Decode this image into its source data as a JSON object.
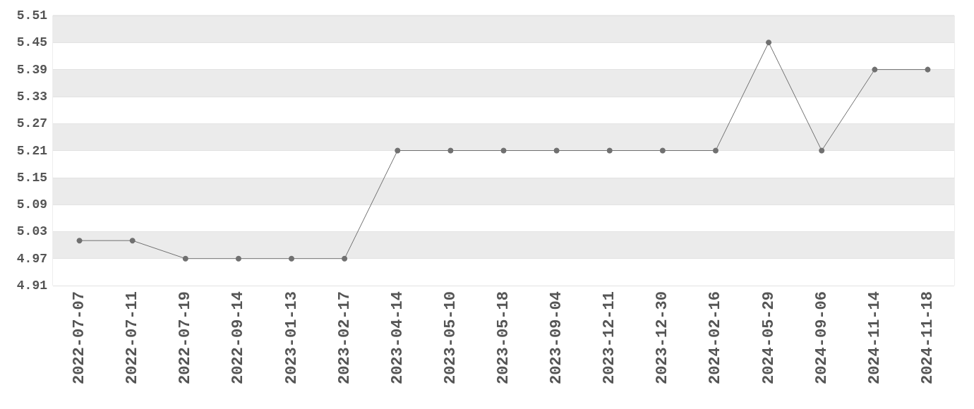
{
  "chart_data": {
    "type": "line",
    "categories": [
      "2022-07-07",
      "2022-07-11",
      "2022-07-19",
      "2022-09-14",
      "2023-01-13",
      "2023-02-17",
      "2023-04-14",
      "2023-05-10",
      "2023-05-18",
      "2023-09-04",
      "2023-12-11",
      "2023-12-30",
      "2024-02-16",
      "2024-05-29",
      "2024-09-06",
      "2024-11-14",
      "2024-11-18"
    ],
    "series": [
      {
        "color": "#707070",
        "values": [
          5.01,
          5.01,
          4.97,
          4.97,
          4.97,
          4.97,
          5.21,
          5.21,
          5.21,
          5.21,
          5.21,
          5.21,
          5.21,
          5.45,
          5.21,
          5.39,
          5.39
        ]
      }
    ],
    "ylim": [
      4.91,
      5.51
    ],
    "yticks": [
      4.91,
      4.97,
      5.03,
      5.09,
      5.15,
      5.21,
      5.27,
      5.33,
      5.39,
      5.45,
      5.51
    ],
    "grid": "y",
    "marker": "circle",
    "line_style": "solid"
  }
}
